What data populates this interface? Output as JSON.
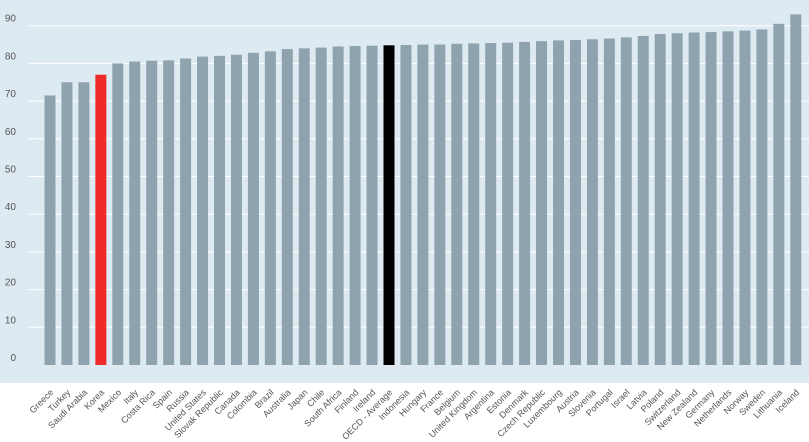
{
  "chart_data": {
    "type": "bar",
    "title": "",
    "xlabel": "",
    "ylabel": "",
    "ylim": [
      0,
      95
    ],
    "yticks": [
      0,
      10,
      20,
      30,
      40,
      50,
      60,
      70,
      80,
      90
    ],
    "grid": true,
    "legend": "none",
    "categories": [
      "Greece",
      "Turkey",
      "Saudi Arabia",
      "Korea",
      "Mexico",
      "Italy",
      "Costa Rica",
      "Spain",
      "Russia",
      "United States",
      "Slovak Republic",
      "Canada",
      "Colombia",
      "Brazil",
      "Australia",
      "Japan",
      "Chile",
      "South Africa",
      "Finland",
      "Ireland",
      "OECD - Average",
      "Indonesia",
      "Hungary",
      "France",
      "Belgium",
      "United Kingdom",
      "Argentina",
      "Estonia",
      "Denmark",
      "Czech Republic",
      "Luxembourg",
      "Austria",
      "Slovenia",
      "Portugal",
      "Israel",
      "Latvia",
      "Poland",
      "Switzerland",
      "New Zealand",
      "Germany",
      "Netherlands",
      "Norway",
      "Sweden",
      "Lithuania",
      "Iceland"
    ],
    "values": [
      71.5,
      75,
      75,
      77,
      80,
      80.5,
      80.7,
      80.8,
      81.3,
      81.8,
      82,
      82.3,
      82.8,
      83.2,
      83.8,
      84,
      84.2,
      84.5,
      84.6,
      84.7,
      84.8,
      84.9,
      85,
      85,
      85.2,
      85.3,
      85.4,
      85.5,
      85.7,
      85.9,
      86.1,
      86.2,
      86.4,
      86.6,
      86.9,
      87.3,
      87.8,
      88,
      88.2,
      88.3,
      88.5,
      88.7,
      89,
      90.5,
      93
    ],
    "colors": {
      "default": "#8ea3ae",
      "highlight_korea": "#ee2a2a",
      "highlight_oecd": "#000000",
      "plot_background": "#deeaf2",
      "gridline": "#ffffff",
      "korea_label": "#e84a4a"
    },
    "highlights": {
      "Korea": "highlight_korea",
      "OECD - Average": "highlight_oecd"
    }
  }
}
